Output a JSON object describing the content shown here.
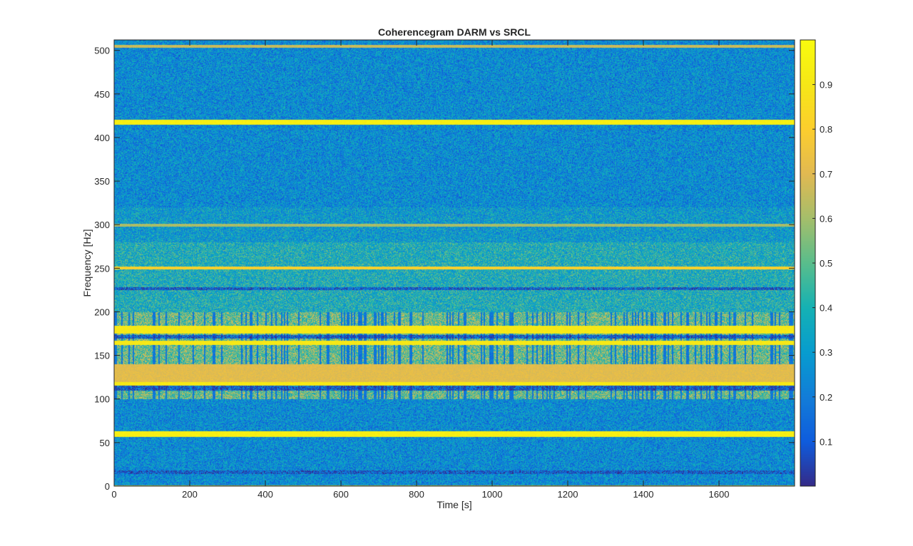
{
  "chart_data": {
    "type": "heatmap",
    "title": "Coherencegram DARM vs SRCL",
    "xlabel": "Time [s]",
    "ylabel": "Frequency [Hz]",
    "xlim": [
      0,
      1800
    ],
    "ylim": [
      0,
      512
    ],
    "x_ticks": [
      0,
      200,
      400,
      600,
      800,
      1000,
      1200,
      1400,
      1600
    ],
    "y_ticks": [
      0,
      50,
      100,
      150,
      200,
      250,
      300,
      350,
      400,
      450,
      500
    ],
    "colorbar": {
      "colormap": "parula",
      "range": [
        0,
        1
      ],
      "ticks": [
        0.1,
        0.2,
        0.3,
        0.4,
        0.5,
        0.6,
        0.7,
        0.8,
        0.9
      ]
    },
    "description_values": {
      "background_coherence": 0.25,
      "bands": [
        {
          "freq_hz": 0,
          "width_hz": 2,
          "coherence": 0.9
        },
        {
          "freq_hz": 60,
          "width_hz": 5,
          "coherence": 0.98
        },
        {
          "freq_hz": 118,
          "width_hz": 3,
          "coherence": 0.95
        },
        {
          "freq_hz": 130,
          "width_hz": 20,
          "coherence": 0.75
        },
        {
          "freq_hz": 165,
          "width_hz": 4,
          "coherence": 0.95
        },
        {
          "freq_hz": 180,
          "width_hz": 8,
          "coherence": 0.95
        },
        {
          "freq_hz": 251,
          "width_hz": 2,
          "coherence": 0.85
        },
        {
          "freq_hz": 300,
          "width_hz": 2,
          "coherence": 0.65
        },
        {
          "freq_hz": 418,
          "width_hz": 4,
          "coherence": 0.98
        },
        {
          "freq_hz": 505,
          "width_hz": 2,
          "coherence": 0.7
        }
      ]
    }
  }
}
